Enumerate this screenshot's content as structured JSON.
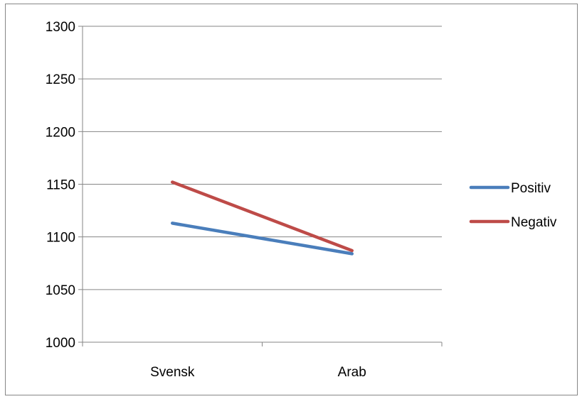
{
  "chart_data": {
    "type": "line",
    "categories": [
      "Svensk",
      "Arab"
    ],
    "series": [
      {
        "name": "Positiv",
        "values": [
          1113,
          1084
        ],
        "color": "#4A7EBB"
      },
      {
        "name": "Negativ",
        "values": [
          1152,
          1087
        ],
        "color": "#BE4B48"
      }
    ],
    "ylim": [
      1000,
      1300
    ],
    "yticks": [
      1000,
      1050,
      1100,
      1150,
      1200,
      1250,
      1300
    ],
    "grid": true,
    "legend_position": "right",
    "colors": {
      "grid": "#868686",
      "axis": "#868686",
      "frame": "#868686"
    }
  }
}
